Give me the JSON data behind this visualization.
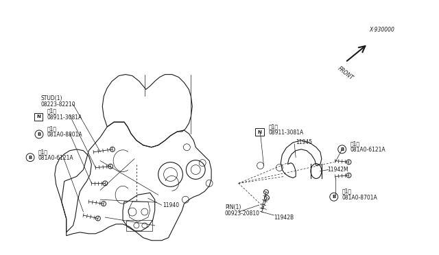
{
  "bg_color": "#ffffff",
  "line_color": "#1a1a1a",
  "diagram_code": "X·930000",
  "front_label": "FRONT",
  "parts": {
    "08223-82210": {
      "label": "08223-82210\nSTUD(1)"
    },
    "08911-3081A_L": {
      "label": "08911-3081A\n、1。",
      "prefix": "N"
    },
    "081A0-8801A": {
      "label": "081A0-8801A\n、1。",
      "prefix": "B"
    },
    "081A0-6121A_L": {
      "label": "081A0-6121A\n、1。",
      "prefix": "B"
    },
    "11940": {
      "label": "11940"
    },
    "08911-3081A_R": {
      "label": "08911-3081A\n、1。",
      "prefix": "N"
    },
    "11945": {
      "label": "11945"
    },
    "081A0-6121A_R": {
      "label": "081A0-6121A\n、1。",
      "prefix": "B"
    },
    "11942M": {
      "label": "11942M"
    },
    "00923-20810": {
      "label": "00923-20810\nPINぉ1ぁ"
    },
    "11942B": {
      "label": "11942B"
    },
    "081A0-8701A": {
      "label": "081A0-8701A\n、1。",
      "prefix": "B"
    }
  }
}
